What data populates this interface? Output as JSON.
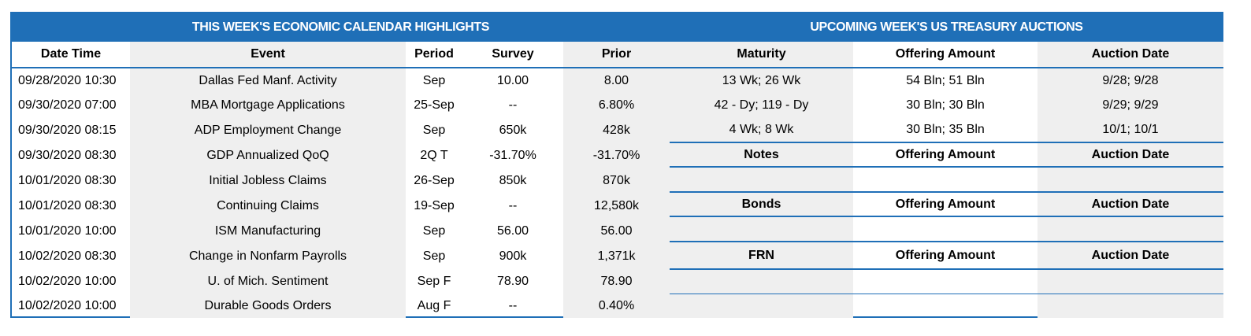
{
  "calendar": {
    "title": "THIS WEEK'S ECONOMIC CALENDAR HIGHLIGHTS",
    "headers": {
      "datetime": "Date Time",
      "event": "Event",
      "period": "Period",
      "survey": "Survey",
      "prior": "Prior"
    },
    "rows": [
      {
        "datetime": "09/28/2020 10:30",
        "event": "Dallas Fed Manf. Activity",
        "period": "Sep",
        "survey": "10.00",
        "prior": "8.00"
      },
      {
        "datetime": "09/30/2020 07:00",
        "event": "MBA Mortgage Applications",
        "period": "25-Sep",
        "survey": "--",
        "prior": "6.80%"
      },
      {
        "datetime": "09/30/2020 08:15",
        "event": "ADP Employment Change",
        "period": "Sep",
        "survey": "650k",
        "prior": "428k"
      },
      {
        "datetime": "09/30/2020 08:30",
        "event": "GDP Annualized QoQ",
        "period": "2Q T",
        "survey": "-31.70%",
        "prior": "-31.70%"
      },
      {
        "datetime": "10/01/2020 08:30",
        "event": "Initial Jobless Claims",
        "period": "26-Sep",
        "survey": "850k",
        "prior": "870k"
      },
      {
        "datetime": "10/01/2020 08:30",
        "event": "Continuing Claims",
        "period": "19-Sep",
        "survey": "--",
        "prior": "12,580k"
      },
      {
        "datetime": "10/01/2020 10:00",
        "event": "ISM Manufacturing",
        "period": "Sep",
        "survey": "56.00",
        "prior": "56.00"
      },
      {
        "datetime": "10/02/2020 08:30",
        "event": "Change in Nonfarm Payrolls",
        "period": "Sep",
        "survey": "900k",
        "prior": "1,371k"
      },
      {
        "datetime": "10/02/2020 10:00",
        "event": "U. of Mich. Sentiment",
        "period": "Sep F",
        "survey": "78.90",
        "prior": "78.90"
      },
      {
        "datetime": "10/02/2020 10:00",
        "event": "Durable Goods Orders",
        "period": "Aug F",
        "survey": "--",
        "prior": "0.40%"
      }
    ]
  },
  "auctions": {
    "title": "UPCOMING WEEK'S US TREASURY AUCTIONS",
    "bills_headers": {
      "maturity": "Maturity",
      "amount": "Offering Amount",
      "date": "Auction Date"
    },
    "bills": [
      {
        "maturity": "13 Wk; 26 Wk",
        "amount": "54 Bln; 51 Bln",
        "date": "9/28; 9/28"
      },
      {
        "maturity": "42 - Dy; 119 - Dy",
        "amount": "30 Bln; 30 Bln",
        "date": "9/29; 9/29"
      },
      {
        "maturity": "4 Wk; 8 Wk",
        "amount": "30 Bln; 35 Bln",
        "date": "10/1; 10/1"
      }
    ],
    "notes_headers": {
      "maturity": "Notes",
      "amount": "Offering Amount",
      "date": "Auction Date"
    },
    "bonds_headers": {
      "maturity": "Bonds",
      "amount": "Offering Amount",
      "date": "Auction Date"
    },
    "frn_headers": {
      "maturity": "FRN",
      "amount": "Offering Amount",
      "date": "Auction Date"
    }
  }
}
